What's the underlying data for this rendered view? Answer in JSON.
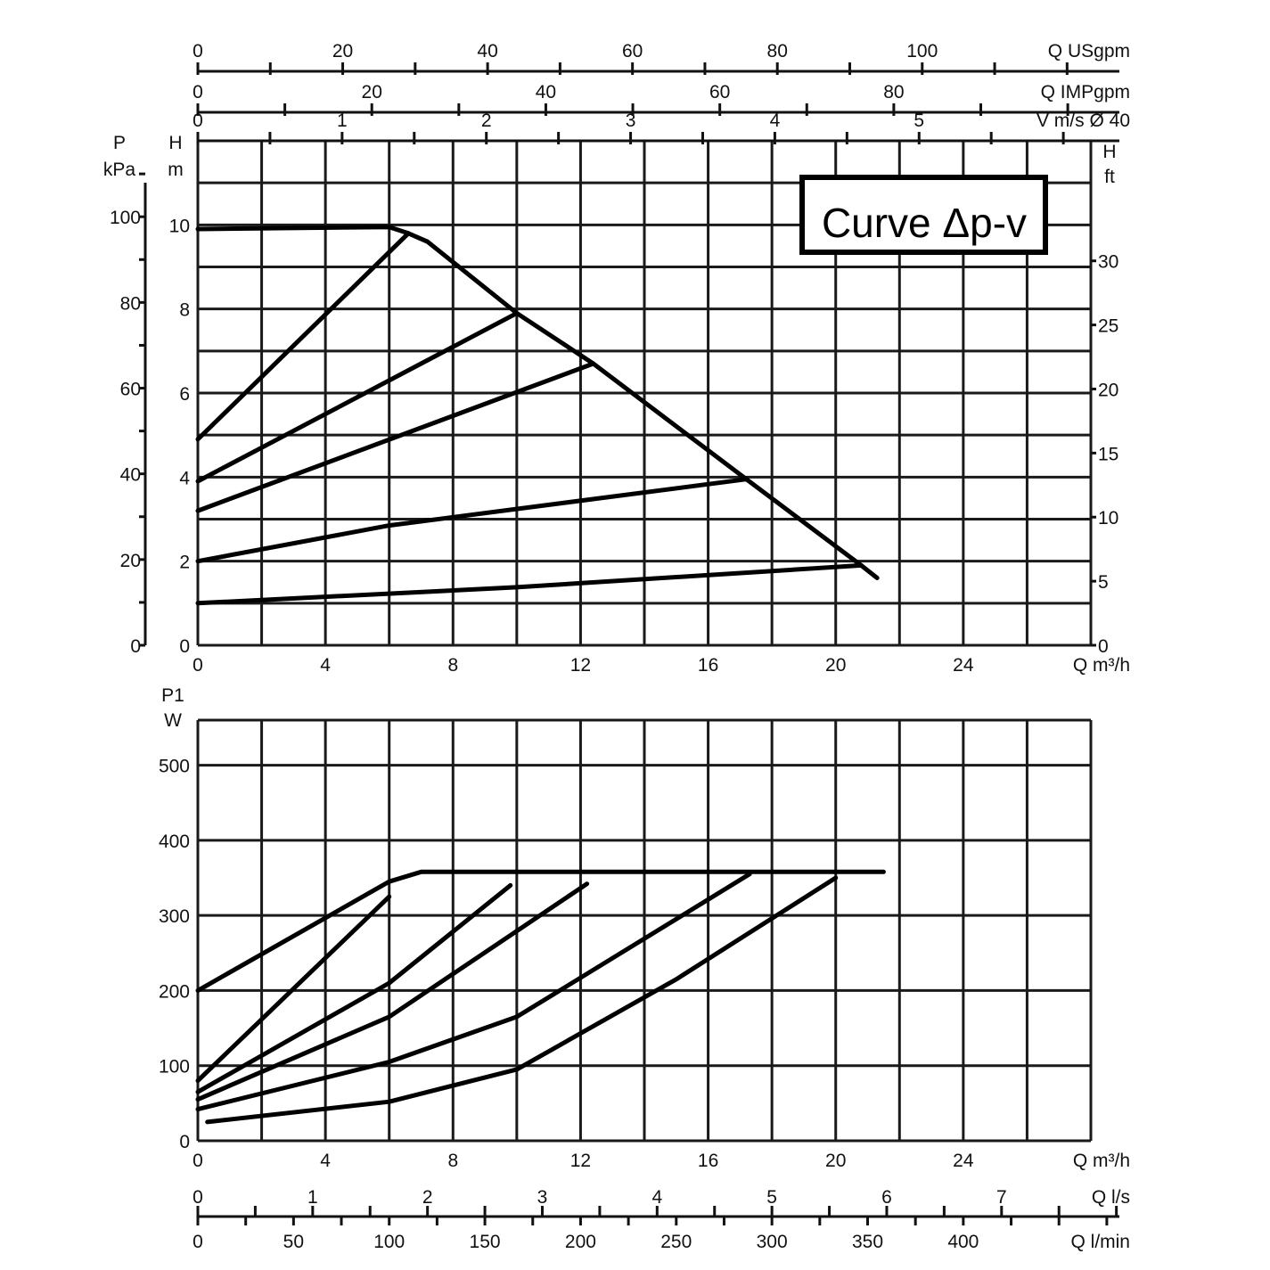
{
  "chart_data": [
    {
      "type": "line",
      "title": "Curve Δp-v",
      "xlabel": "Q m³/h",
      "ylabel_left_pressure": "P kPa",
      "ylabel_left_head": "H m",
      "ylabel_right": "H ft",
      "xlim": [
        0,
        28
      ],
      "ylim": [
        0,
        12
      ],
      "grid": true,
      "x_ticks": [
        "0",
        "4",
        "8",
        "12",
        "16",
        "20",
        "24"
      ],
      "y_ticks_head_m": [
        "0",
        "2",
        "4",
        "6",
        "8",
        "10"
      ],
      "y_ticks_pressure_kpa": [
        "0",
        "20",
        "40",
        "60",
        "80",
        "100"
      ],
      "y_ticks_head_ft": [
        "0",
        "5",
        "10",
        "15",
        "20",
        "25",
        "30"
      ],
      "top_axes": [
        {
          "label": "Q USgpm",
          "ticks": [
            "0",
            "20",
            "40",
            "60",
            "80",
            "100"
          ]
        },
        {
          "label": "Q IMPgpm",
          "ticks": [
            "0",
            "20",
            "40",
            "60",
            "80"
          ]
        },
        {
          "label": "V m/s Ø 40",
          "ticks": [
            "0",
            "1",
            "2",
            "3",
            "4",
            "5"
          ]
        }
      ],
      "series": [
        {
          "values": [
            [
              0,
              9.9
            ],
            [
              6.0,
              9.95
            ],
            [
              6.6,
              9.8
            ]
          ]
        },
        {
          "values": [
            [
              6.6,
              9.8
            ],
            [
              7.2,
              9.6
            ],
            [
              10.0,
              7.9
            ],
            [
              12.4,
              6.7
            ],
            [
              17.2,
              3.95
            ],
            [
              20.8,
              1.9
            ],
            [
              21.3,
              1.6
            ]
          ]
        },
        {
          "values": [
            [
              0,
              4.9
            ],
            [
              6.6,
              9.8
            ]
          ]
        },
        {
          "values": [
            [
              0,
              3.9
            ],
            [
              10.0,
              7.9
            ]
          ]
        },
        {
          "values": [
            [
              0,
              3.2
            ],
            [
              12.4,
              6.7
            ]
          ]
        },
        {
          "values": [
            [
              0,
              2.0
            ],
            [
              6.0,
              2.85
            ],
            [
              17.2,
              3.95
            ]
          ]
        },
        {
          "values": [
            [
              0,
              1.0
            ],
            [
              10.0,
              1.38
            ],
            [
              20.8,
              1.9
            ]
          ]
        }
      ]
    },
    {
      "type": "line",
      "ylabel": "P1 W",
      "xlabel": "Q m³/h",
      "xlim": [
        0,
        28
      ],
      "ylim": [
        0,
        560
      ],
      "grid": true,
      "x_ticks": [
        "0",
        "4",
        "8",
        "12",
        "16",
        "20",
        "24"
      ],
      "y_ticks": [
        "0",
        "100",
        "200",
        "300",
        "400",
        "500"
      ],
      "bottom_axes": [
        {
          "label": "Q l/s",
          "ticks": [
            "0",
            "1",
            "2",
            "3",
            "4",
            "5",
            "6",
            "7"
          ]
        },
        {
          "label": "Q l/min",
          "ticks": [
            "0",
            "50",
            "100",
            "150",
            "200",
            "250",
            "300",
            "350",
            "400"
          ]
        }
      ],
      "series": [
        {
          "values": [
            [
              0,
              200
            ],
            [
              6.0,
              345
            ],
            [
              7.0,
              358
            ],
            [
              21.5,
              358
            ]
          ]
        },
        {
          "values": [
            [
              0,
              80
            ],
            [
              6.0,
              325
            ]
          ]
        },
        {
          "values": [
            [
              0,
              65
            ],
            [
              6.0,
              210
            ],
            [
              9.8,
              340
            ]
          ]
        },
        {
          "values": [
            [
              0,
              55
            ],
            [
              6.0,
              165
            ],
            [
              12.2,
              342
            ]
          ]
        },
        {
          "values": [
            [
              0,
              42
            ],
            [
              6.0,
              105
            ],
            [
              10.0,
              165
            ],
            [
              17.3,
              355
            ]
          ]
        },
        {
          "values": [
            [
              0.3,
              25
            ],
            [
              6.0,
              52
            ],
            [
              10.0,
              95
            ],
            [
              15.0,
              215
            ],
            [
              20.0,
              350
            ]
          ]
        }
      ]
    }
  ]
}
